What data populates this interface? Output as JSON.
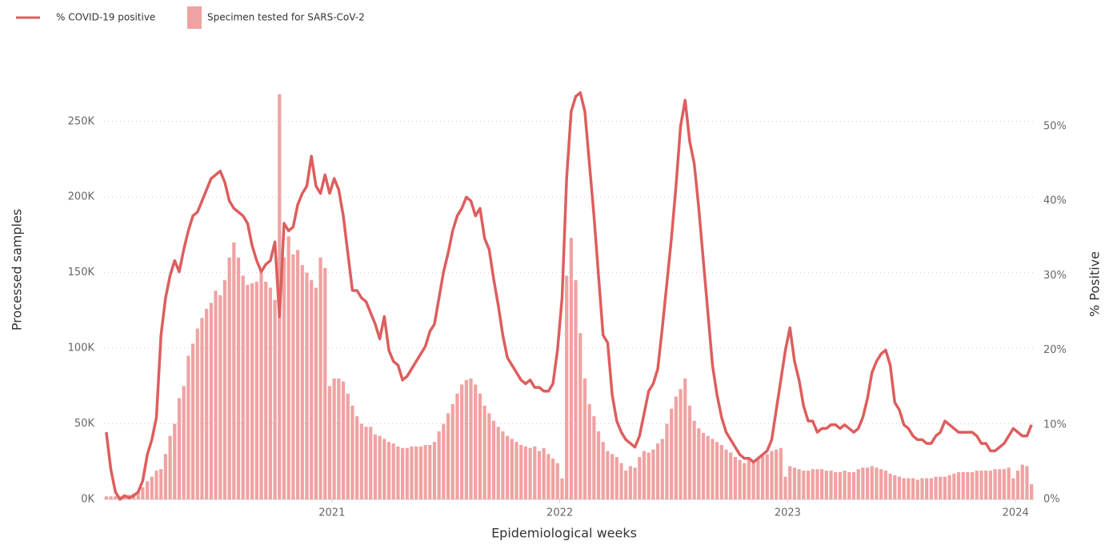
{
  "chart_data": {
    "type": "combo",
    "legend": "top-left",
    "grid": true,
    "x_label": "Epidemiological weeks",
    "y_label": "Processed samples",
    "y2_label": "% Positive",
    "xlim": [
      2020,
      2024.08
    ],
    "xticks": [
      2021,
      2022,
      2023,
      2024
    ],
    "ylim": [
      0,
      270000
    ],
    "yticks": [
      {
        "value": 0,
        "label": "0K"
      },
      {
        "value": 50000,
        "label": "50K"
      },
      {
        "value": 100000,
        "label": "100K"
      },
      {
        "value": 150000,
        "label": "150K"
      },
      {
        "value": 200000,
        "label": "200K"
      },
      {
        "value": 250000,
        "label": "250K"
      }
    ],
    "y2lim": [
      0,
      54.7
    ],
    "y2ticks": [
      {
        "value": 0,
        "label": "0%"
      },
      {
        "value": 10,
        "label": "10%"
      },
      {
        "value": 20,
        "label": "20%"
      },
      {
        "value": 30,
        "label": "30%"
      },
      {
        "value": 40,
        "label": "40%"
      },
      {
        "value": 50,
        "label": "50%"
      }
    ],
    "x": [
      2020.01,
      2020.03,
      2020.05,
      2020.07,
      2020.09,
      2020.11,
      2020.13,
      2020.15,
      2020.17,
      2020.19,
      2020.21,
      2020.23,
      2020.25,
      2020.27,
      2020.29,
      2020.31,
      2020.33,
      2020.35,
      2020.37,
      2020.39,
      2020.41,
      2020.43,
      2020.45,
      2020.47,
      2020.49,
      2020.51,
      2020.53,
      2020.55,
      2020.57,
      2020.59,
      2020.61,
      2020.63,
      2020.65,
      2020.67,
      2020.69,
      2020.71,
      2020.73,
      2020.75,
      2020.77,
      2020.79,
      2020.81,
      2020.83,
      2020.85,
      2020.87,
      2020.89,
      2020.91,
      2020.93,
      2020.95,
      2020.97,
      2020.99,
      2021.01,
      2021.03,
      2021.05,
      2021.07,
      2021.09,
      2021.11,
      2021.13,
      2021.15,
      2021.17,
      2021.19,
      2021.21,
      2021.23,
      2021.25,
      2021.27,
      2021.29,
      2021.31,
      2021.33,
      2021.35,
      2021.37,
      2021.39,
      2021.41,
      2021.43,
      2021.45,
      2021.47,
      2021.49,
      2021.51,
      2021.53,
      2021.55,
      2021.57,
      2021.59,
      2021.61,
      2021.63,
      2021.65,
      2021.67,
      2021.69,
      2021.71,
      2021.73,
      2021.75,
      2021.77,
      2021.79,
      2021.81,
      2021.83,
      2021.85,
      2021.87,
      2021.89,
      2021.91,
      2021.93,
      2021.95,
      2021.97,
      2021.99,
      2022.01,
      2022.03,
      2022.05,
      2022.07,
      2022.09,
      2022.11,
      2022.13,
      2022.15,
      2022.17,
      2022.19,
      2022.21,
      2022.23,
      2022.25,
      2022.27,
      2022.29,
      2022.31,
      2022.33,
      2022.35,
      2022.37,
      2022.39,
      2022.41,
      2022.43,
      2022.45,
      2022.47,
      2022.49,
      2022.51,
      2022.53,
      2022.55,
      2022.57,
      2022.59,
      2022.61,
      2022.63,
      2022.65,
      2022.67,
      2022.69,
      2022.71,
      2022.73,
      2022.75,
      2022.77,
      2022.79,
      2022.81,
      2022.83,
      2022.85,
      2022.87,
      2022.89,
      2022.91,
      2022.93,
      2022.95,
      2022.97,
      2022.99,
      2023.01,
      2023.03,
      2023.05,
      2023.07,
      2023.09,
      2023.11,
      2023.13,
      2023.15,
      2023.17,
      2023.19,
      2023.21,
      2023.23,
      2023.25,
      2023.27,
      2023.29,
      2023.31,
      2023.33,
      2023.35,
      2023.37,
      2023.39,
      2023.41,
      2023.43,
      2023.45,
      2023.47,
      2023.49,
      2023.51,
      2023.53,
      2023.55,
      2023.57,
      2023.59,
      2023.61,
      2023.63,
      2023.65,
      2023.67,
      2023.69,
      2023.71,
      2023.73,
      2023.75,
      2023.77,
      2023.79,
      2023.81,
      2023.83,
      2023.85,
      2023.87,
      2023.89,
      2023.91,
      2023.93,
      2023.95,
      2023.97,
      2023.99,
      2024.01,
      2024.03,
      2024.05,
      2024.07
    ],
    "series": [
      {
        "name": "% COVID-19 positive",
        "type": "line",
        "axis": "y2",
        "color": "#dd5e5e",
        "values": [
          9,
          4,
          1,
          0,
          0.5,
          0.2,
          0.5,
          1,
          2.5,
          6,
          8,
          11,
          22,
          27,
          30,
          32,
          30.5,
          33.5,
          36,
          38,
          38.5,
          40,
          41.5,
          43,
          43.5,
          44,
          42.5,
          40,
          39,
          38.5,
          38,
          37,
          34,
          32,
          30.5,
          31.5,
          32,
          34.5,
          24.5,
          37,
          36,
          36.5,
          39.5,
          41,
          42,
          46,
          42,
          41,
          43.5,
          41,
          43,
          41.5,
          38,
          33,
          28,
          28,
          27,
          26.5,
          25,
          23.5,
          21.5,
          24.5,
          20,
          18.5,
          18,
          16,
          16.5,
          17.5,
          18.5,
          19.5,
          20.5,
          22.5,
          23.5,
          27,
          30.5,
          33,
          36,
          38,
          39,
          40.5,
          40,
          38,
          39,
          35,
          33.5,
          29.5,
          26,
          22,
          19,
          18,
          17,
          16,
          15.5,
          16,
          15,
          15,
          14.5,
          14.5,
          15.5,
          20,
          27,
          43,
          52,
          54,
          54.5,
          52,
          45,
          38,
          30,
          22,
          21,
          14,
          10.5,
          9,
          8,
          7.5,
          7,
          8.5,
          11.5,
          14.5,
          15.5,
          17.5,
          23,
          29,
          35,
          42,
          50,
          53.5,
          48,
          45,
          39,
          32,
          25,
          18,
          14,
          11,
          9,
          8,
          7,
          6,
          5.5,
          5.5,
          5,
          5.5,
          6,
          6.5,
          8,
          12,
          16,
          20,
          23,
          18.5,
          16,
          12.5,
          10.5,
          10.5,
          9,
          9.5,
          9.5,
          10,
          10,
          9.5,
          10,
          9.5,
          9,
          9.5,
          11,
          13.5,
          17,
          18.5,
          19.5,
          20,
          18,
          13,
          12,
          10,
          9.5,
          8.5,
          8,
          8,
          7.5,
          7.5,
          8.5,
          9,
          10.5,
          10,
          9.5,
          9,
          9,
          9,
          9,
          8.5,
          7.5,
          7.5,
          6.5,
          6.5,
          7,
          7.5,
          8.5,
          9.5,
          9,
          8.5,
          8.5,
          10
        ]
      },
      {
        "name": "Specimen tested for SARS-CoV-2",
        "type": "bar",
        "axis": "y",
        "color": "#f0a2a2",
        "values": [
          2000,
          2000,
          2000,
          2000,
          3000,
          3000,
          4000,
          5000,
          8000,
          12000,
          15000,
          19000,
          20000,
          30000,
          42000,
          50000,
          67000,
          75000,
          95000,
          103000,
          113000,
          120000,
          126000,
          130000,
          138000,
          135000,
          145000,
          160000,
          170000,
          160000,
          148000,
          142000,
          143000,
          144000,
          150000,
          144000,
          140000,
          132000,
          268000,
          160000,
          174000,
          162000,
          165000,
          155000,
          150000,
          145000,
          140000,
          160000,
          153000,
          75000,
          80000,
          80000,
          78000,
          70000,
          62000,
          55000,
          50000,
          48000,
          48000,
          43000,
          42000,
          40000,
          38000,
          37000,
          35000,
          34000,
          34000,
          35000,
          35000,
          35000,
          36000,
          36000,
          38000,
          45000,
          50000,
          57000,
          63000,
          70000,
          76000,
          79000,
          80000,
          76000,
          70000,
          62000,
          57000,
          52000,
          48000,
          45000,
          42000,
          40000,
          38000,
          36000,
          35000,
          34000,
          35000,
          32000,
          34000,
          30000,
          27000,
          24000,
          14000,
          148000,
          173000,
          145000,
          110000,
          80000,
          63000,
          55000,
          45000,
          38000,
          32000,
          30000,
          28000,
          24000,
          19000,
          22000,
          21000,
          28000,
          32000,
          31000,
          33000,
          37000,
          40000,
          50000,
          60000,
          68000,
          73000,
          80000,
          62000,
          52000,
          47000,
          44000,
          42000,
          40000,
          38000,
          36000,
          33000,
          31000,
          28000,
          26000,
          24000,
          27000,
          25000,
          27000,
          29000,
          30000,
          32000,
          33000,
          34000,
          15000,
          22000,
          21000,
          20000,
          19000,
          19000,
          20000,
          20000,
          20000,
          19000,
          19000,
          18000,
          18000,
          19000,
          18000,
          18000,
          20000,
          21000,
          21000,
          22000,
          21000,
          20000,
          19000,
          17000,
          16000,
          15000,
          14000,
          14000,
          14000,
          13000,
          14000,
          14000,
          14000,
          15000,
          15000,
          15000,
          16000,
          17000,
          18000,
          18000,
          18000,
          18000,
          19000,
          19000,
          19000,
          19000,
          20000,
          20000,
          20000,
          21000,
          14000,
          19000,
          23000,
          22000,
          10000
        ]
      }
    ]
  }
}
